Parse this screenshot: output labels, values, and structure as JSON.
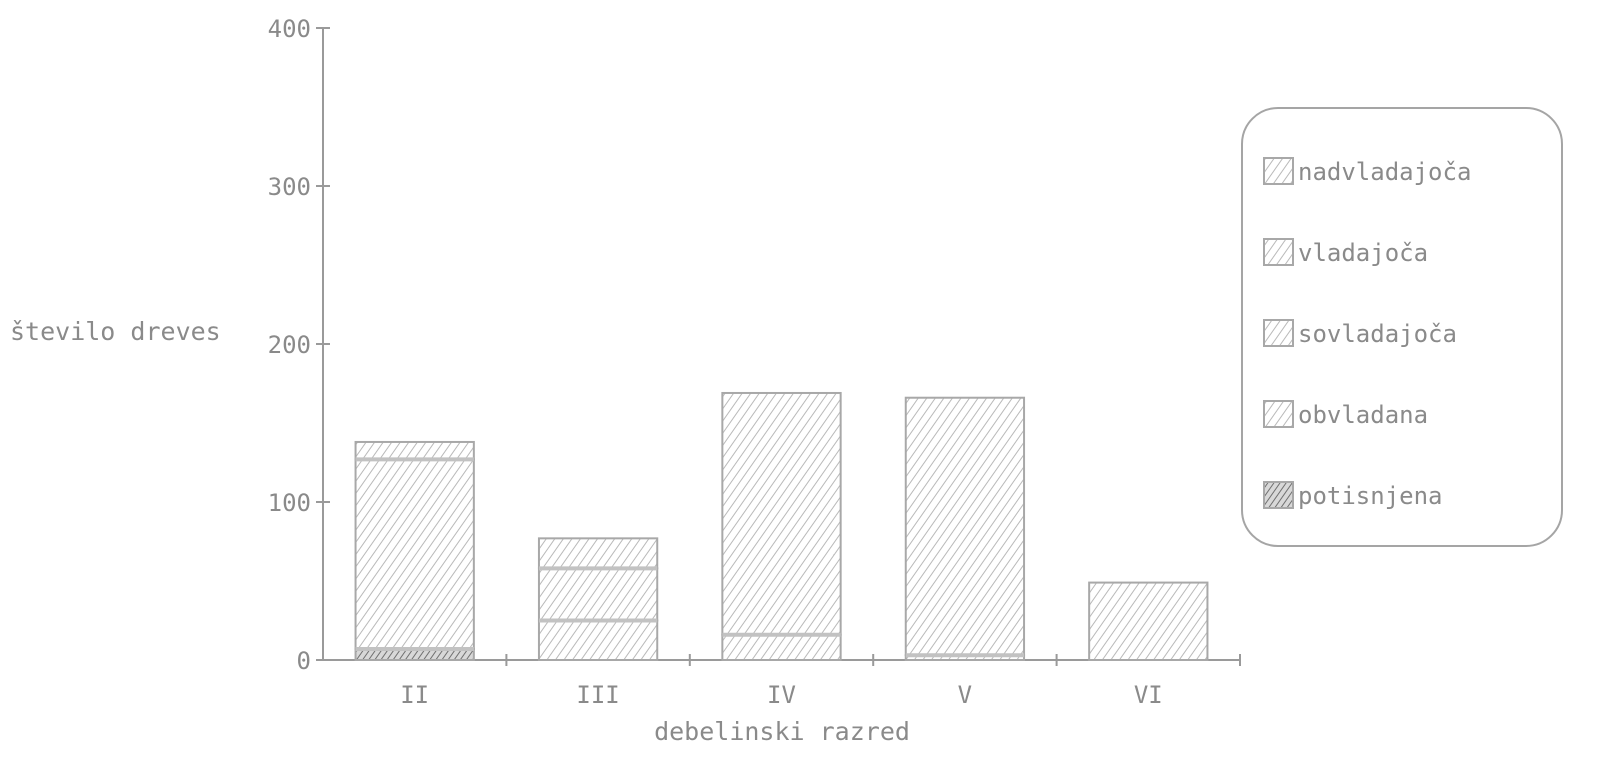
{
  "chart_data": {
    "type": "bar",
    "stacked": true,
    "categories": [
      "II",
      "III",
      "IV",
      "V",
      "VI"
    ],
    "series": [
      {
        "name": "potisnjena",
        "values": [
          7,
          0,
          0,
          0,
          0
        ]
      },
      {
        "name": "obvladana",
        "values": [
          0,
          25,
          16,
          3,
          0
        ]
      },
      {
        "name": "sovladajoča",
        "values": [
          120,
          33,
          153,
          163,
          49
        ]
      },
      {
        "name": "vladajoča",
        "values": [
          0,
          0,
          0,
          0,
          0
        ]
      },
      {
        "name": "nadvladajoča",
        "values": [
          11,
          19,
          0,
          0,
          0
        ]
      }
    ],
    "xlabel": "debelinski razred",
    "ylabel": "število dreves",
    "ylim": [
      0,
      400
    ],
    "yticks": [
      "400",
      "300",
      "200",
      "100",
      "0"
    ],
    "yticks_values": [
      400,
      300,
      200,
      100,
      0
    ],
    "grid": false,
    "legend_placement": "right",
    "colors": {
      "axis": "#9a9a9a",
      "hatch": "#b9b9b9",
      "hatch_dark": "#707070",
      "text": "#8a8a8a"
    }
  }
}
